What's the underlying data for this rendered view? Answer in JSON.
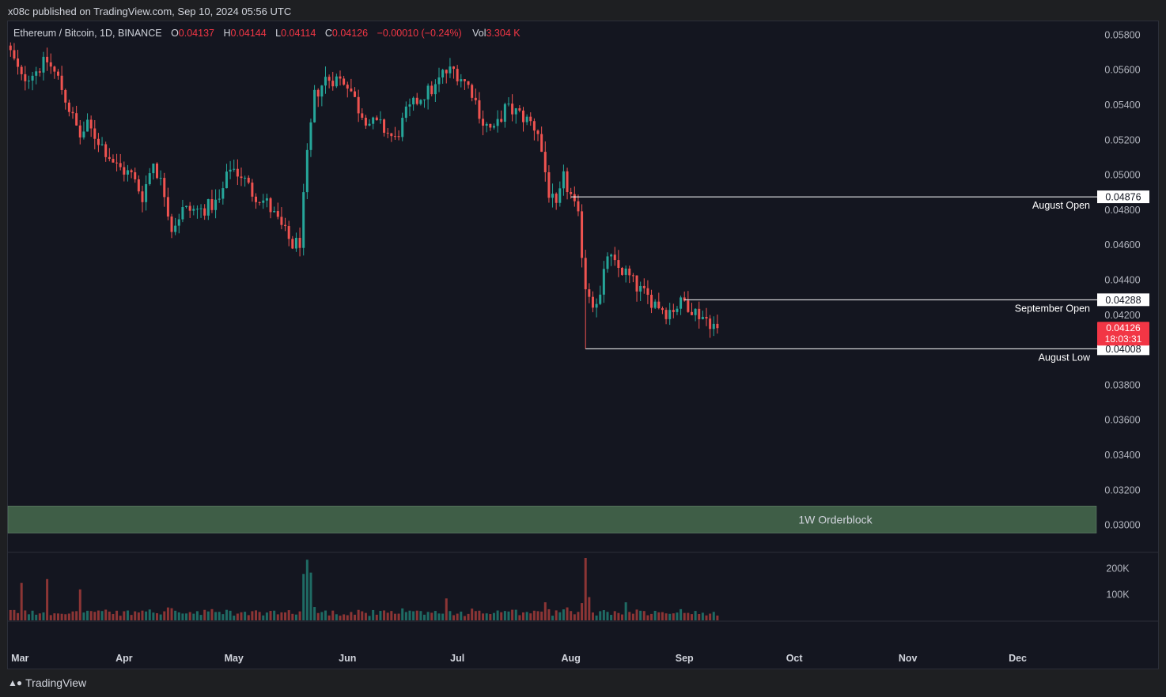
{
  "header": {
    "published": "x08c published on TradingView.com, Sep 10, 2024 05:56 UTC"
  },
  "legend": {
    "symbol": "Ethereum / Bitcoin, 1D, BINANCE",
    "o_label": "O",
    "o_value": "0.04137",
    "h_label": "H",
    "h_value": "0.04144",
    "l_label": "L",
    "l_value": "0.04114",
    "c_label": "C",
    "c_value": "0.04126",
    "change": "−0.00010 (−0.24%)",
    "vol_label": "Vol",
    "vol_value": "3.304 K"
  },
  "price_axis": {
    "ticks": [
      "0.05800",
      "0.05600",
      "0.05400",
      "0.05200",
      "0.05000",
      "0.04800",
      "0.04600",
      "0.04400",
      "0.04200",
      "0.03800",
      "0.03600",
      "0.03400",
      "0.03200",
      "0.03000"
    ],
    "tick_values": [
      0.058,
      0.056,
      0.054,
      0.052,
      0.05,
      0.048,
      0.046,
      0.044,
      0.042,
      0.038,
      0.036,
      0.034,
      0.032,
      0.03
    ],
    "range": [
      0.02845,
      0.05883
    ]
  },
  "volume_axis": {
    "ticks": [
      "200K",
      "100K"
    ],
    "tick_values": [
      200000,
      100000
    ],
    "max": 242000
  },
  "time_axis": {
    "labels": [
      "Mar",
      "Apr",
      "May",
      "Jun",
      "Jul",
      "Aug",
      "Sep",
      "Oct",
      "Nov",
      "Dec"
    ]
  },
  "levels": [
    {
      "name": "August Open",
      "value": 0.04876,
      "label": "0.04876",
      "start": "2024-08-01"
    },
    {
      "name": "September Open",
      "value": 0.04288,
      "label": "0.04288",
      "start": "2024-09-01"
    },
    {
      "name": "August Low",
      "value": 0.04008,
      "label": "0.04008",
      "start": "2024-08-05"
    }
  ],
  "current_price": {
    "value": 0.04126,
    "label": "0.04126",
    "countdown": "18:03:31"
  },
  "orderblock": {
    "label": "1W Orderblock",
    "low": 0.02955,
    "high": 0.0311
  },
  "colors": {
    "up": "#26a69a",
    "down": "#ef5350",
    "background": "#141620",
    "orderblock": "#3f5e47",
    "level_line": "#ffffff"
  },
  "brand": {
    "name": "TradingView"
  },
  "chart_data": {
    "type": "candlestick",
    "title": "Ethereum / Bitcoin, 1D, BINANCE",
    "x_range": [
      "2024-03-01",
      "2024-12-31"
    ],
    "ylim": [
      0.02845,
      0.05883
    ],
    "grid": false,
    "anchors": [
      [
        "2024-03-01",
        0.057
      ],
      [
        "2024-03-04",
        0.0555
      ],
      [
        "2024-03-08",
        0.056
      ],
      [
        "2024-03-11",
        0.0565
      ],
      [
        "2024-03-14",
        0.0555
      ],
      [
        "2024-03-17",
        0.0538
      ],
      [
        "2024-03-20",
        0.0522
      ],
      [
        "2024-03-22",
        0.0528
      ],
      [
        "2024-03-25",
        0.052
      ],
      [
        "2024-03-30",
        0.0505
      ],
      [
        "2024-04-03",
        0.05
      ],
      [
        "2024-04-06",
        0.0488
      ],
      [
        "2024-04-09",
        0.0508
      ],
      [
        "2024-04-12",
        0.049
      ],
      [
        "2024-04-14",
        0.047
      ],
      [
        "2024-04-17",
        0.048
      ],
      [
        "2024-04-22",
        0.048
      ],
      [
        "2024-04-27",
        0.0485
      ],
      [
        "2024-04-30",
        0.0505
      ],
      [
        "2024-05-03",
        0.05
      ],
      [
        "2024-05-06",
        0.049
      ],
      [
        "2024-05-10",
        0.0484
      ],
      [
        "2024-05-14",
        0.047
      ],
      [
        "2024-05-17",
        0.046
      ],
      [
        "2024-05-19",
        0.0462
      ],
      [
        "2024-05-21",
        0.051
      ],
      [
        "2024-05-23",
        0.0545
      ],
      [
        "2024-05-26",
        0.0555
      ],
      [
        "2024-05-29",
        0.0555
      ],
      [
        "2024-06-01",
        0.0553
      ],
      [
        "2024-06-04",
        0.0538
      ],
      [
        "2024-06-07",
        0.053
      ],
      [
        "2024-06-10",
        0.0528
      ],
      [
        "2024-06-14",
        0.052
      ],
      [
        "2024-06-17",
        0.0535
      ],
      [
        "2024-06-21",
        0.0545
      ],
      [
        "2024-06-25",
        0.055
      ],
      [
        "2024-06-27",
        0.0558
      ],
      [
        "2024-06-30",
        0.056
      ],
      [
        "2024-07-02",
        0.0556
      ],
      [
        "2024-07-05",
        0.0548
      ],
      [
        "2024-07-08",
        0.053
      ],
      [
        "2024-07-11",
        0.0525
      ],
      [
        "2024-07-14",
        0.0538
      ],
      [
        "2024-07-17",
        0.0536
      ],
      [
        "2024-07-21",
        0.053
      ],
      [
        "2024-07-23",
        0.0525
      ],
      [
        "2024-07-26",
        0.049
      ],
      [
        "2024-07-28",
        0.048
      ],
      [
        "2024-07-30",
        0.0498
      ],
      [
        "2024-08-01",
        0.0488
      ],
      [
        "2024-08-03",
        0.0475
      ],
      [
        "2024-08-05",
        0.0437
      ],
      [
        "2024-08-07",
        0.0428
      ],
      [
        "2024-08-09",
        0.043
      ],
      [
        "2024-08-11",
        0.0455
      ],
      [
        "2024-08-13",
        0.0448
      ],
      [
        "2024-08-16",
        0.0444
      ],
      [
        "2024-08-19",
        0.0436
      ],
      [
        "2024-08-22",
        0.043
      ],
      [
        "2024-08-25",
        0.0426
      ],
      [
        "2024-08-27",
        0.0422
      ],
      [
        "2024-08-29",
        0.0424
      ],
      [
        "2024-09-01",
        0.0428
      ],
      [
        "2024-09-04",
        0.0422
      ],
      [
        "2024-09-07",
        0.0418
      ],
      [
        "2024-09-10",
        0.04126
      ]
    ],
    "volume_spikes": {
      "2024-03-04": 145000,
      "2024-03-11": 160000,
      "2024-03-20": 120000,
      "2024-05-20": 180000,
      "2024-05-21": 235000,
      "2024-05-22": 185000,
      "2024-06-28": 85000,
      "2024-08-05": 242000,
      "2024-08-06": 90000,
      "2024-07-25": 70000,
      "2024-08-16": 70000
    }
  }
}
